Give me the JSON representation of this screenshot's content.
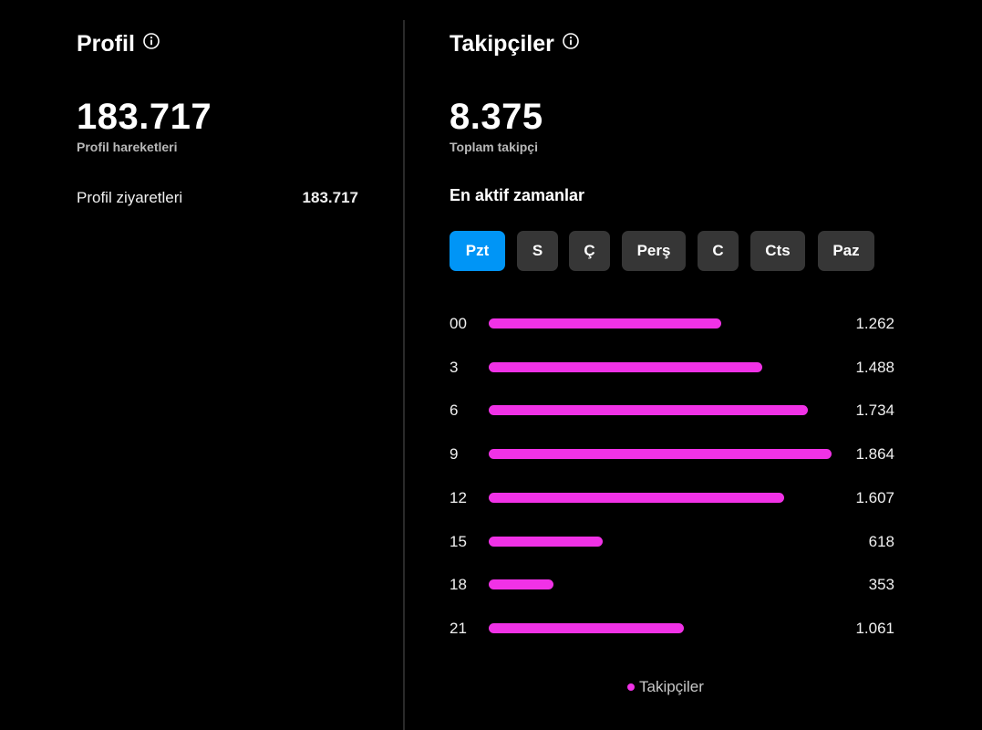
{
  "profile": {
    "title": "Profil",
    "total": "183.717",
    "total_label": "Profil hareketleri",
    "visits_label": "Profil ziyaretleri",
    "visits_value": "183.717"
  },
  "followers": {
    "title": "Takipçiler",
    "total": "8.375",
    "total_label": "Toplam takipçi",
    "active_heading": "En aktif zamanlar",
    "days": [
      "Pzt",
      "S",
      "Ç",
      "Perş",
      "C",
      "Cts",
      "Paz"
    ],
    "selected_day": "Pzt"
  },
  "colors": {
    "bar": "#f032e6",
    "active_tab": "#0095f6",
    "tab": "#363636",
    "background": "#000000"
  },
  "icons": {
    "info": "info-icon"
  },
  "chart_data": {
    "type": "bar",
    "orientation": "horizontal",
    "categories": [
      "00",
      "3",
      "6",
      "9",
      "12",
      "15",
      "18",
      "21"
    ],
    "values": [
      1262,
      1488,
      1734,
      1864,
      1607,
      618,
      353,
      1061
    ],
    "value_labels": [
      "1.262",
      "1.488",
      "1.734",
      "1.864",
      "1.607",
      "618",
      "353",
      "1.061"
    ],
    "series": [
      {
        "name": "Takipçiler",
        "values": [
          1262,
          1488,
          1734,
          1864,
          1607,
          618,
          353,
          1061
        ]
      }
    ],
    "legend": "bottom-center",
    "grid": false
  }
}
